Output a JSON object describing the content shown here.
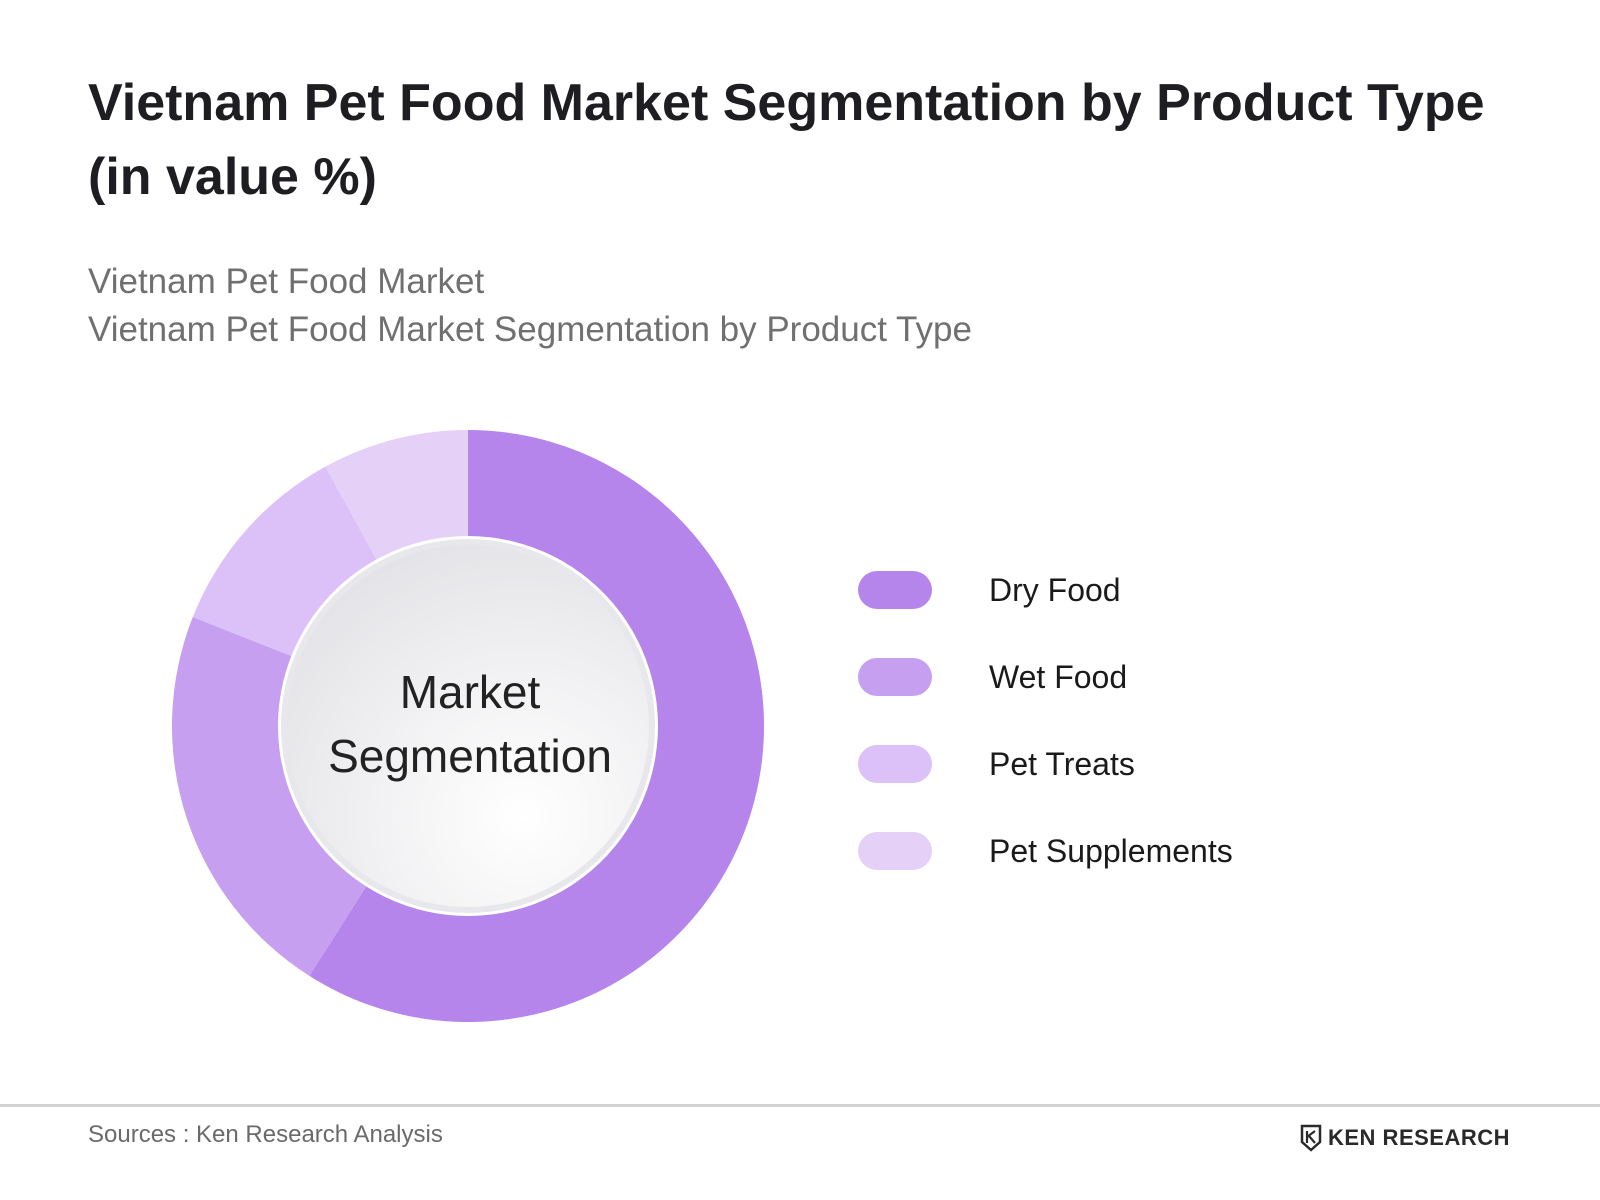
{
  "header": {
    "title": "Vietnam Pet Food Market Segmentation by Product Type (in value %)",
    "subtitle_line1": "Vietnam Pet Food Market",
    "subtitle_line2": "Vietnam Pet Food Market Segmentation by Product Type"
  },
  "chart_data": {
    "type": "pie",
    "variant": "donut",
    "center_label_line1": "Market",
    "center_label_line2": "Segmentation",
    "categories": [
      "Dry Food",
      "Wet Food",
      "Pet Treats",
      "Pet Supplements"
    ],
    "values": [
      59,
      22,
      11,
      8
    ],
    "colors": [
      "#b585ec",
      "#c69ff0",
      "#dbc1f7",
      "#e5d0f8"
    ],
    "legend_position": "right"
  },
  "footer": {
    "source": "Sources : Ken Research Analysis",
    "logo_text": "KEN RESEARCH"
  }
}
